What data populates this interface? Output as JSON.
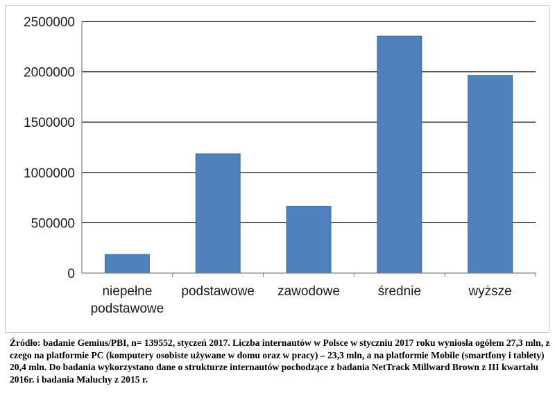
{
  "chart_data": {
    "type": "bar",
    "categories": [
      [
        "niepełne",
        "podstawowe"
      ],
      [
        "podstawowe"
      ],
      [
        "zawodowe"
      ],
      [
        "średnie"
      ],
      [
        "wyższe"
      ]
    ],
    "values": [
      185000,
      1185000,
      665000,
      2355000,
      1965000
    ],
    "yticks": [
      "0",
      "500000",
      "1000000",
      "1500000",
      "2000000",
      "2500000"
    ],
    "ylim": [
      0,
      2500000
    ],
    "grid": true,
    "bar_color": "#4f81bd"
  },
  "caption": "Źródło: badanie Gemius/PBI, n= 139552, styczeń 2017. Liczba internautów w Polsce w styczniu 2017 roku wyniosła ogółem 27,3 mln, z czego na platformie PC (komputery osobiste używane w domu oraz w pracy) – 23,3 mln, a na platformie Mobile (smartfony i tablety) 20,4 mln. Do badania wykorzystano dane o strukturze internautów pochodzące z badania NetTrack Millward Brown z III kwartału 2016r. i badania Maluchy z 2015 r."
}
